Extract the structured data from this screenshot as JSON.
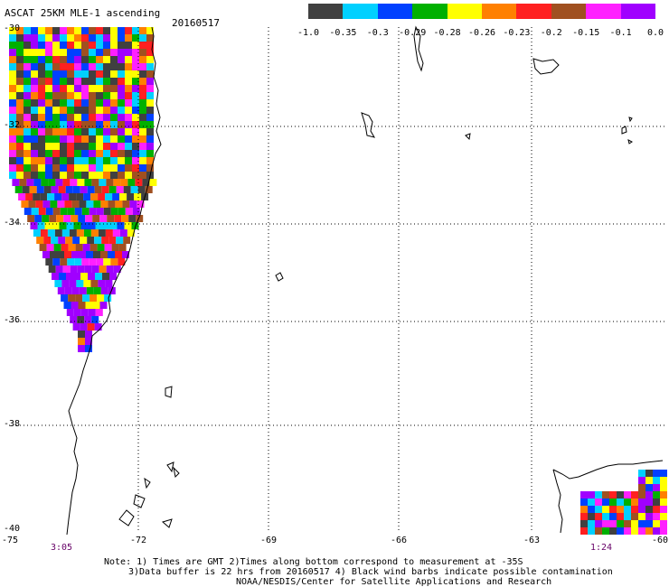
{
  "header": {
    "title": "ASCAT 25KM MLE-1 ascending",
    "date": "20160517"
  },
  "colorbar": {
    "colors": [
      "#404040",
      "#00d0ff",
      "#0040ff",
      "#00b000",
      "#ffff00",
      "#ff8000",
      "#ff2020",
      "#a05020",
      "#ff20ff",
      "#a000ff"
    ],
    "labels": [
      "-1.0",
      "-0.35",
      "-0.3",
      "-0.29",
      "-0.28",
      "-0.26",
      "-0.23",
      "-0.2",
      "-0.15",
      "-0.1",
      "0.0"
    ]
  },
  "axes": {
    "lat_labels": [
      "-30",
      "-32",
      "-34",
      "-36",
      "-38",
      "-40"
    ],
    "lon_labels": [
      "-75",
      "-72",
      "-69",
      "-66",
      "-63",
      "-60"
    ],
    "lat_range": [
      -40,
      -30
    ],
    "lon_range": [
      -75,
      -60
    ],
    "grid": "dotted"
  },
  "swath_times": [
    {
      "label": "3:05",
      "lon": -73.2
    },
    {
      "label": "1:24",
      "lon": -61.4
    }
  ],
  "notes": [
    "Note: 1) Times are GMT 2)Times along bottom correspond to measurement at -35S",
    "3)Data buffer is 22 hrs from 20160517 4) Black wind barbs indicate possible contamination",
    "NOAA/NESDIS/Center for Satellite Applications and Research"
  ]
}
